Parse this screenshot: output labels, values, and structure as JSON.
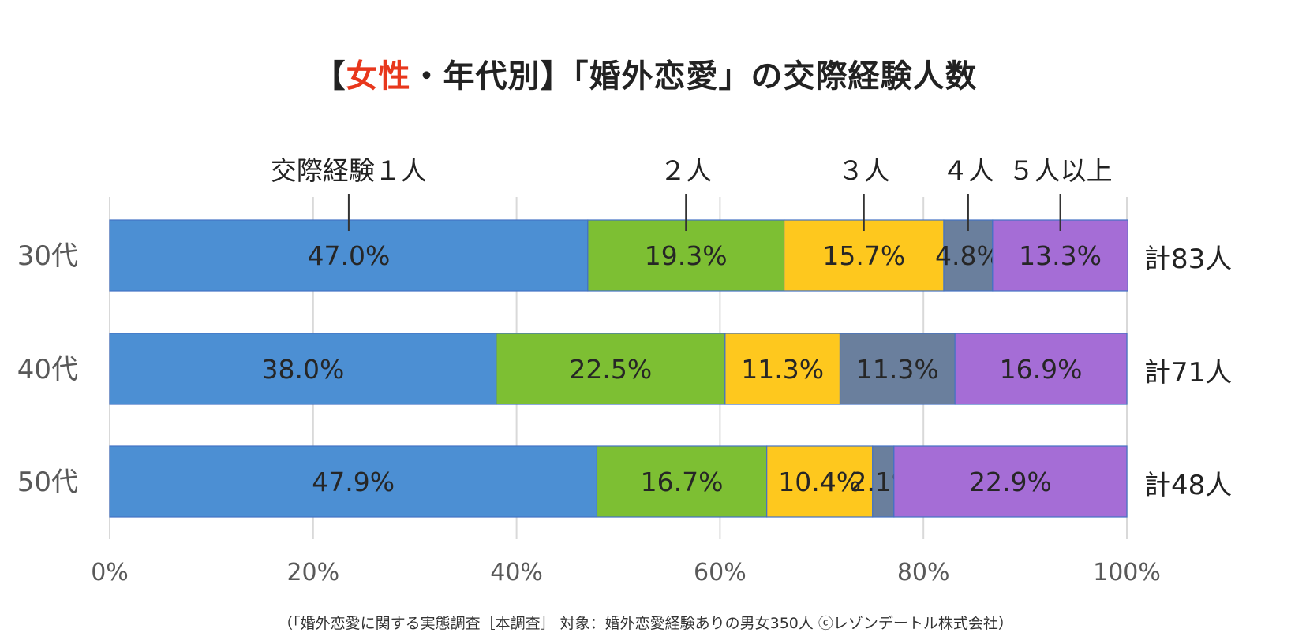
{
  "title": {
    "open_bracket": "【",
    "highlight": "女性",
    "rest": "・年代別】「婚外恋愛」の交際経験人数"
  },
  "colors": {
    "accent": "#e8371c",
    "series": [
      "#4c8fd3",
      "#7dbf33",
      "#fec81e",
      "#6a7f9d",
      "#a56dd6"
    ]
  },
  "footnote": "（「婚外恋愛に関する実態調査［本調査］ 対象：婚外恋愛経験ありの男女350人 ⓒレゾンデートル株式会社）",
  "chart_data": {
    "type": "bar",
    "orientation": "horizontal",
    "stacked": true,
    "title": "【女性・年代別】「婚外恋愛」の交際経験人数",
    "categories": [
      "30代",
      "40代",
      "50代"
    ],
    "series": [
      {
        "name": "交際経験１人",
        "values": [
          47.0,
          38.0,
          47.9
        ],
        "labels": [
          "47.0%",
          "38.0%",
          "47.9%"
        ]
      },
      {
        "name": "２人",
        "values": [
          19.3,
          22.5,
          16.7
        ],
        "labels": [
          "19.3%",
          "22.5%",
          "16.7%"
        ]
      },
      {
        "name": "３人",
        "values": [
          15.7,
          11.3,
          10.4
        ],
        "labels": [
          "15.7%",
          "11.3%",
          "10.4%"
        ]
      },
      {
        "name": "４人",
        "values": [
          4.8,
          11.3,
          2.1
        ],
        "labels": [
          "4.8%",
          "11.3%",
          "2.1%"
        ]
      },
      {
        "name": "５人以上",
        "values": [
          13.3,
          16.9,
          22.9
        ],
        "labels": [
          "13.3%",
          "16.9%",
          "22.9%"
        ]
      }
    ],
    "totals": [
      "計83人",
      "計71人",
      "計48人"
    ],
    "x_ticks": [
      0,
      20,
      40,
      60,
      80,
      100
    ],
    "x_tick_labels": [
      "0%",
      "20%",
      "40%",
      "60%",
      "80%",
      "100%"
    ],
    "xlim": [
      0,
      100
    ],
    "grid": true,
    "legend": "top, callouts above the first bar"
  }
}
